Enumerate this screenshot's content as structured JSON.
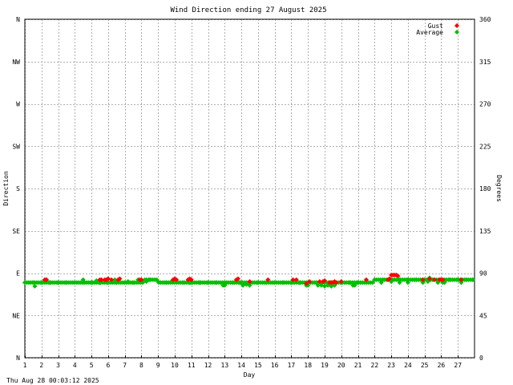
{
  "chart_data": {
    "type": "scatter",
    "title": "Wind Direction ending 27 August 2025",
    "xlabel": "Day",
    "ylabel_left": "Direction",
    "ylabel_right": "Degrees",
    "footer": "Thu Aug 28 00:03:12 2025",
    "xlim": [
      1,
      28
    ],
    "ylim": [
      0,
      360
    ],
    "grid": true,
    "legend_position": "top-right",
    "x_ticks": [
      "1",
      "2",
      "3",
      "4",
      "5",
      "6",
      "7",
      "8",
      "9",
      "10",
      "11",
      "12",
      "13",
      "14",
      "15",
      "16",
      "17",
      "18",
      "19",
      "20",
      "21",
      "22",
      "23",
      "24",
      "25",
      "26",
      "27"
    ],
    "y_ticks_left": [
      {
        "value": 0,
        "label": "N"
      },
      {
        "value": 45,
        "label": "NE"
      },
      {
        "value": 90,
        "label": "E"
      },
      {
        "value": 135,
        "label": "SE"
      },
      {
        "value": 180,
        "label": "S"
      },
      {
        "value": 225,
        "label": "SW"
      },
      {
        "value": 270,
        "label": "W"
      },
      {
        "value": 315,
        "label": "NW"
      },
      {
        "value": 360,
        "label": "N"
      }
    ],
    "y_ticks_right": [
      {
        "value": 0,
        "label": "0"
      },
      {
        "value": 45,
        "label": "45"
      },
      {
        "value": 90,
        "label": "90"
      },
      {
        "value": 135,
        "label": "135"
      },
      {
        "value": 180,
        "label": "180"
      },
      {
        "value": 225,
        "label": "225"
      },
      {
        "value": 270,
        "label": "270"
      },
      {
        "value": 315,
        "label": "315"
      },
      {
        "value": 360,
        "label": "360"
      }
    ],
    "series": [
      {
        "name": "Gust",
        "color": "#ff0000",
        "points": [
          [
            2.2,
            83
          ],
          [
            2.3,
            83
          ],
          [
            5.5,
            83
          ],
          [
            5.6,
            83
          ],
          [
            5.8,
            83
          ],
          [
            5.9,
            83
          ],
          [
            6.0,
            84
          ],
          [
            6.2,
            83
          ],
          [
            6.6,
            83
          ],
          [
            6.7,
            84
          ],
          [
            7.9,
            83
          ],
          [
            8.0,
            83
          ],
          [
            9.9,
            83
          ],
          [
            10.0,
            84
          ],
          [
            10.1,
            83
          ],
          [
            10.8,
            83
          ],
          [
            10.9,
            84
          ],
          [
            11.0,
            83
          ],
          [
            13.7,
            83
          ],
          [
            13.8,
            84
          ],
          [
            14.5,
            81
          ],
          [
            15.6,
            83
          ],
          [
            17.1,
            83
          ],
          [
            17.3,
            83
          ],
          [
            17.9,
            79
          ],
          [
            18.1,
            81
          ],
          [
            18.7,
            81
          ],
          [
            18.9,
            81
          ],
          [
            19.0,
            82
          ],
          [
            19.3,
            80
          ],
          [
            19.4,
            80
          ],
          [
            19.5,
            80
          ],
          [
            19.6,
            81
          ],
          [
            19.7,
            80
          ],
          [
            20.0,
            81
          ],
          [
            21.5,
            83
          ],
          [
            22.8,
            83
          ],
          [
            22.9,
            84
          ],
          [
            23.0,
            88
          ],
          [
            23.1,
            88
          ],
          [
            23.2,
            88
          ],
          [
            23.3,
            88
          ],
          [
            23.4,
            87
          ],
          [
            24.9,
            83
          ],
          [
            25.3,
            84
          ],
          [
            25.6,
            83
          ],
          [
            25.9,
            83
          ],
          [
            26.0,
            83
          ],
          [
            26.1,
            83
          ],
          [
            27.2,
            83
          ]
        ]
      },
      {
        "name": "Average",
        "color": "#00c000",
        "points": [
          [
            1.0,
            80
          ],
          [
            1.5,
            80
          ],
          [
            2.0,
            80
          ],
          [
            2.5,
            80
          ],
          [
            3.0,
            80
          ],
          [
            3.5,
            80
          ],
          [
            4.0,
            80
          ],
          [
            4.5,
            80
          ],
          [
            5.0,
            80
          ],
          [
            5.5,
            80
          ],
          [
            6.0,
            80
          ],
          [
            6.5,
            80
          ],
          [
            7.0,
            80
          ],
          [
            7.5,
            80
          ],
          [
            8.0,
            81
          ],
          [
            8.5,
            83
          ],
          [
            9.0,
            81
          ],
          [
            9.5,
            80
          ],
          [
            10.0,
            81
          ],
          [
            10.5,
            80
          ],
          [
            11.0,
            80
          ],
          [
            11.5,
            80
          ],
          [
            12.0,
            80
          ],
          [
            12.5,
            80
          ],
          [
            13.0,
            80
          ],
          [
            13.5,
            80
          ],
          [
            14.0,
            80
          ],
          [
            14.5,
            80
          ],
          [
            15.0,
            80
          ],
          [
            15.5,
            80
          ],
          [
            16.0,
            80
          ],
          [
            16.5,
            80
          ],
          [
            17.0,
            80
          ],
          [
            17.5,
            80
          ],
          [
            18.0,
            80
          ],
          [
            18.5,
            80
          ],
          [
            19.0,
            80
          ],
          [
            19.5,
            80
          ],
          [
            20.0,
            80
          ],
          [
            20.5,
            80
          ],
          [
            21.0,
            80
          ],
          [
            21.5,
            81
          ],
          [
            22.0,
            83
          ],
          [
            22.5,
            83
          ],
          [
            23.0,
            83
          ],
          [
            23.5,
            83
          ],
          [
            24.0,
            83
          ],
          [
            24.5,
            83
          ],
          [
            25.0,
            83
          ],
          [
            25.5,
            83
          ],
          [
            26.0,
            83
          ],
          [
            26.5,
            83
          ],
          [
            27.0,
            83
          ],
          [
            27.5,
            83
          ],
          [
            27.9,
            83
          ],
          [
            1.6,
            76
          ],
          [
            2.2,
            83
          ],
          [
            2.3,
            83
          ],
          [
            4.5,
            83
          ],
          [
            5.3,
            82
          ],
          [
            6.4,
            83
          ],
          [
            7.2,
            81
          ],
          [
            7.8,
            83
          ],
          [
            8.3,
            81
          ],
          [
            9.8,
            81
          ],
          [
            10.9,
            80
          ],
          [
            12.9,
            77
          ],
          [
            13.0,
            77
          ],
          [
            13.9,
            80
          ],
          [
            14.1,
            77
          ],
          [
            14.3,
            78
          ],
          [
            14.5,
            77
          ],
          [
            17.9,
            77
          ],
          [
            18.0,
            77
          ],
          [
            18.6,
            77
          ],
          [
            18.8,
            77
          ],
          [
            19.0,
            76
          ],
          [
            19.2,
            77
          ],
          [
            19.4,
            76
          ],
          [
            19.6,
            77
          ],
          [
            20.7,
            77
          ],
          [
            20.8,
            77
          ],
          [
            22.4,
            80
          ],
          [
            23.0,
            81
          ],
          [
            23.5,
            80
          ],
          [
            24.0,
            80
          ],
          [
            24.9,
            80
          ],
          [
            25.2,
            81
          ],
          [
            25.3,
            85
          ],
          [
            25.8,
            80
          ],
          [
            26.1,
            80
          ],
          [
            26.2,
            80
          ],
          [
            27.2,
            80
          ]
        ]
      }
    ]
  }
}
